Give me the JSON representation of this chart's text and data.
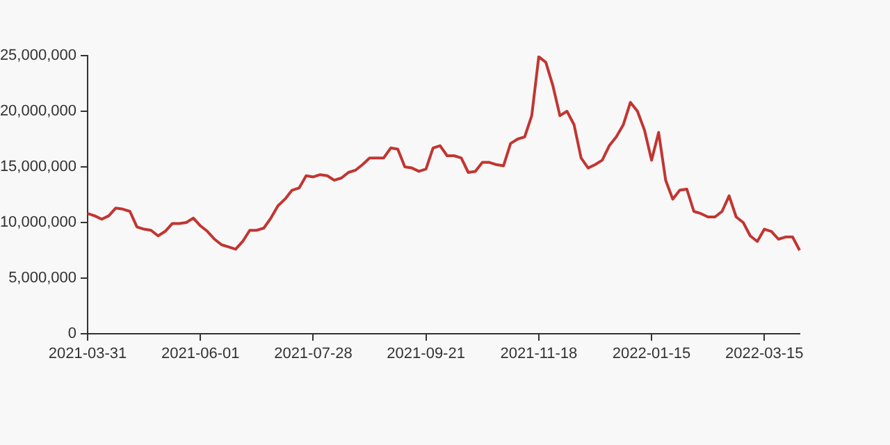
{
  "chart_data": {
    "type": "line",
    "categories": [
      "2021-03-31",
      null,
      null,
      null,
      null,
      null,
      null,
      null,
      null,
      null,
      null,
      null,
      null,
      null,
      null,
      null,
      "2021-06-01",
      null,
      null,
      null,
      null,
      null,
      null,
      null,
      null,
      null,
      null,
      null,
      null,
      null,
      null,
      null,
      "2021-07-28",
      null,
      null,
      null,
      null,
      null,
      null,
      null,
      null,
      null,
      null,
      null,
      null,
      null,
      null,
      null,
      "2021-09-21",
      null,
      null,
      null,
      null,
      null,
      null,
      null,
      null,
      null,
      null,
      null,
      null,
      null,
      null,
      null,
      "2021-11-18",
      null,
      null,
      null,
      null,
      null,
      null,
      null,
      null,
      null,
      null,
      null,
      null,
      null,
      null,
      null,
      "2022-01-15",
      null,
      null,
      null,
      null,
      null,
      null,
      null,
      null,
      null,
      null,
      null,
      null,
      null,
      null,
      null,
      "2022-03-15",
      null,
      null,
      null,
      null,
      null
    ],
    "series": [
      {
        "color": "#c23531",
        "values": [
          10800000,
          10600000,
          10300000,
          10600000,
          11300000,
          11200000,
          11000000,
          9600000,
          9400000,
          9300000,
          8800000,
          9200000,
          9900000,
          9900000,
          10000000,
          10400000,
          9700000,
          9200000,
          8500000,
          8000000,
          7800000,
          7600000,
          8300000,
          9300000,
          9300000,
          9500000,
          10400000,
          11500000,
          12100000,
          12900000,
          13100000,
          14200000,
          14100000,
          14300000,
          14200000,
          13800000,
          14000000,
          14500000,
          14700000,
          15200000,
          15800000,
          15800000,
          15800000,
          16700000,
          16600000,
          15000000,
          14900000,
          14600000,
          14800000,
          16700000,
          16900000,
          16000000,
          16000000,
          15800000,
          14500000,
          14600000,
          15400000,
          15400000,
          15200000,
          15100000,
          17100000,
          17500000,
          17700000,
          19600000,
          24900000,
          24400000,
          22300000,
          19600000,
          20000000,
          18800000,
          15800000,
          14900000,
          15200000,
          15600000,
          16900000,
          17700000,
          18800000,
          20800000,
          20000000,
          18300000,
          15600000,
          18100000,
          13800000,
          12100000,
          12900000,
          13000000,
          11000000,
          10800000,
          10500000,
          10500000,
          11000000,
          12400000,
          10500000,
          10000000,
          8800000,
          8300000,
          9400000,
          9200000,
          8500000,
          8700000,
          8700000,
          7500000
        ]
      }
    ],
    "ylim": [
      0,
      25000000
    ],
    "yticks": [
      {
        "value": 0,
        "label": "0"
      },
      {
        "value": 5000000,
        "label": "5,000,000"
      },
      {
        "value": 10000000,
        "label": "10,000,000"
      },
      {
        "value": 15000000,
        "label": "15,000,000"
      },
      {
        "value": 20000000,
        "label": "20,000,000"
      },
      {
        "value": 25000000,
        "label": "25,000,000"
      }
    ]
  }
}
